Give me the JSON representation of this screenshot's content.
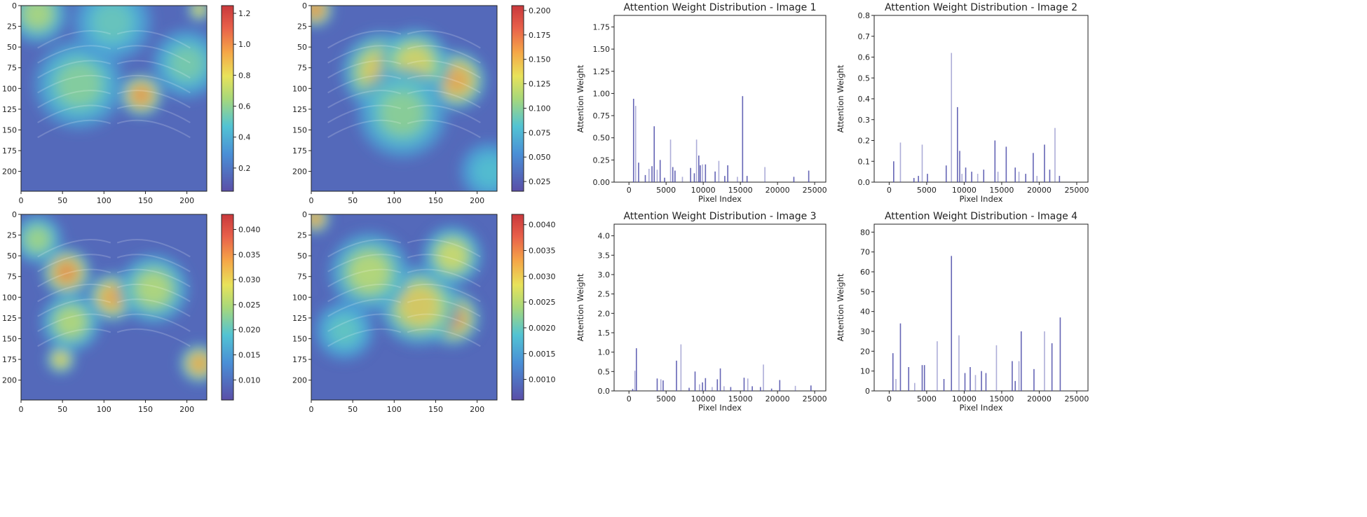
{
  "chart_data": [
    {
      "type": "heatmap",
      "panel": "heatmap-1",
      "x_ticks": [
        "0",
        "50",
        "100",
        "150",
        "200"
      ],
      "y_ticks": [
        "0",
        "25",
        "50",
        "75",
        "100",
        "125",
        "150",
        "175",
        "200"
      ],
      "xlim": [
        0,
        224
      ],
      "ylim": [
        224,
        0
      ],
      "colorbar": {
        "min": 0.05,
        "max": 1.25,
        "ticks": [
          "0.2",
          "0.4",
          "0.6",
          "0.8",
          "1.0",
          "1.2"
        ]
      },
      "blobs": [
        {
          "x": 145,
          "y": 108,
          "value": 1.2,
          "spread": 22
        },
        {
          "x": 70,
          "y": 95,
          "value": 0.7,
          "spread": 45
        },
        {
          "x": 200,
          "y": 70,
          "value": 0.65,
          "spread": 35
        },
        {
          "x": 215,
          "y": 5,
          "value": 1.0,
          "spread": 12
        },
        {
          "x": 20,
          "y": 10,
          "value": 0.8,
          "spread": 30
        },
        {
          "x": 110,
          "y": 20,
          "value": 0.6,
          "spread": 40
        }
      ]
    },
    {
      "type": "heatmap",
      "panel": "heatmap-2",
      "x_ticks": [
        "0",
        "50",
        "100",
        "150",
        "200"
      ],
      "y_ticks": [
        "0",
        "25",
        "50",
        "75",
        "100",
        "125",
        "150",
        "175",
        "200"
      ],
      "xlim": [
        0,
        224
      ],
      "ylim": [
        224,
        0
      ],
      "colorbar": {
        "min": 0.015,
        "max": 0.205,
        "ticks": [
          "0.025",
          "0.050",
          "0.075",
          "0.100",
          "0.125",
          "0.150",
          "0.175",
          "0.200"
        ]
      },
      "blobs": [
        {
          "x": 5,
          "y": 5,
          "value": 0.2,
          "spread": 18
        },
        {
          "x": 85,
          "y": 80,
          "value": 0.17,
          "spread": 40
        },
        {
          "x": 175,
          "y": 90,
          "value": 0.19,
          "spread": 30
        },
        {
          "x": 125,
          "y": 70,
          "value": 0.16,
          "spread": 35
        },
        {
          "x": 110,
          "y": 130,
          "value": 0.12,
          "spread": 45
        },
        {
          "x": 215,
          "y": 200,
          "value": 0.09,
          "spread": 30
        }
      ]
    },
    {
      "type": "heatmap",
      "panel": "heatmap-3",
      "x_ticks": [
        "0",
        "50",
        "100",
        "150",
        "200"
      ],
      "y_ticks": [
        "0",
        "25",
        "50",
        "75",
        "100",
        "125",
        "150",
        "175",
        "200"
      ],
      "xlim": [
        0,
        224
      ],
      "ylim": [
        224,
        0
      ],
      "colorbar": {
        "min": 0.006,
        "max": 0.043,
        "ticks": [
          "0.010",
          "0.015",
          "0.020",
          "0.025",
          "0.030",
          "0.035",
          "0.040"
        ]
      },
      "blobs": [
        {
          "x": 55,
          "y": 70,
          "value": 0.042,
          "spread": 25
        },
        {
          "x": 110,
          "y": 100,
          "value": 0.04,
          "spread": 25
        },
        {
          "x": 48,
          "y": 175,
          "value": 0.035,
          "spread": 15
        },
        {
          "x": 215,
          "y": 180,
          "value": 0.04,
          "spread": 20
        },
        {
          "x": 160,
          "y": 90,
          "value": 0.03,
          "spread": 35
        },
        {
          "x": 60,
          "y": 130,
          "value": 0.03,
          "spread": 30
        },
        {
          "x": 20,
          "y": 30,
          "value": 0.028,
          "spread": 25
        }
      ]
    },
    {
      "type": "heatmap",
      "panel": "heatmap-4",
      "x_ticks": [
        "0",
        "50",
        "100",
        "150",
        "200"
      ],
      "y_ticks": [
        "0",
        "25",
        "50",
        "75",
        "100",
        "125",
        "150",
        "175",
        "200"
      ],
      "xlim": [
        0,
        224
      ],
      "ylim": [
        224,
        0
      ],
      "colorbar": {
        "min": 0.0006,
        "max": 0.0042,
        "ticks": [
          "0.0010",
          "0.0015",
          "0.0020",
          "0.0025",
          "0.0030",
          "0.0035",
          "0.0040"
        ]
      },
      "blobs": [
        {
          "x": 170,
          "y": 125,
          "value": 0.0041,
          "spread": 28
        },
        {
          "x": 5,
          "y": 5,
          "value": 0.004,
          "spread": 15
        },
        {
          "x": 130,
          "y": 110,
          "value": 0.0035,
          "spread": 40
        },
        {
          "x": 70,
          "y": 70,
          "value": 0.003,
          "spread": 40
        },
        {
          "x": 170,
          "y": 50,
          "value": 0.0032,
          "spread": 30
        },
        {
          "x": 40,
          "y": 140,
          "value": 0.0022,
          "spread": 30
        }
      ]
    },
    {
      "type": "bar",
      "panel": "bar-1",
      "title": "Attention Weight Distribution - Image 1",
      "xlabel": "Pixel Index",
      "ylabel": "Attention Weight",
      "xlim": [
        -2000,
        26500
      ],
      "ylim": [
        0,
        1.88
      ],
      "x_ticks": [
        0,
        5000,
        10000,
        15000,
        20000,
        25000
      ],
      "y_ticks": [
        "0.00",
        "0.25",
        "0.50",
        "0.75",
        "1.00",
        "1.25",
        "1.50",
        "1.75"
      ],
      "y_tick_values": [
        0,
        0.25,
        0.5,
        0.75,
        1.0,
        1.25,
        1.5,
        1.75
      ],
      "x": [
        620,
        900,
        1300,
        2200,
        2700,
        3100,
        3400,
        3800,
        4200,
        4800,
        5600,
        5900,
        6200,
        7200,
        8300,
        8800,
        9100,
        9400,
        9600,
        9900,
        10300,
        11600,
        12100,
        12900,
        13300,
        14600,
        15300,
        15900,
        18300,
        22200,
        24200
      ],
      "values": [
        0.94,
        0.86,
        0.22,
        0.08,
        0.15,
        0.18,
        0.63,
        0.14,
        0.25,
        0.05,
        0.48,
        0.17,
        0.13,
        0.06,
        0.16,
        0.1,
        0.48,
        0.3,
        0.19,
        0.2,
        0.2,
        0.12,
        0.24,
        0.07,
        0.19,
        0.06,
        0.97,
        0.07,
        0.17,
        0.06,
        0.13
      ]
    },
    {
      "type": "bar",
      "panel": "bar-2",
      "title": "Attention Weight Distribution - Image 2",
      "xlabel": "Pixel Index",
      "ylabel": "Attention Weight",
      "xlim": [
        -2000,
        26500
      ],
      "ylim": [
        0,
        0.8
      ],
      "x_ticks": [
        0,
        5000,
        10000,
        15000,
        20000,
        25000
      ],
      "y_ticks": [
        "0.0",
        "0.1",
        "0.2",
        "0.3",
        "0.4",
        "0.5",
        "0.6",
        "0.7",
        "0.8"
      ],
      "y_tick_values": [
        0,
        0.1,
        0.2,
        0.3,
        0.4,
        0.5,
        0.6,
        0.7,
        0.8
      ],
      "x": [
        600,
        1500,
        3300,
        3900,
        4400,
        5100,
        7600,
        8300,
        9100,
        9400,
        9700,
        10200,
        11000,
        11800,
        12600,
        14100,
        14500,
        15600,
        16800,
        17300,
        18200,
        19200,
        19700,
        20700,
        21400,
        22100,
        22700
      ],
      "values": [
        0.1,
        0.19,
        0.02,
        0.03,
        0.18,
        0.04,
        0.08,
        0.62,
        0.36,
        0.15,
        0.04,
        0.07,
        0.05,
        0.04,
        0.06,
        0.2,
        0.05,
        0.17,
        0.07,
        0.05,
        0.04,
        0.14,
        0.03,
        0.18,
        0.06,
        0.26,
        0.03
      ]
    },
    {
      "type": "bar",
      "panel": "bar-3",
      "title": "Attention Weight Distribution - Image 3",
      "xlabel": "Pixel Index",
      "ylabel": "Attention Weight",
      "xlim": [
        -2000,
        26500
      ],
      "ylim": [
        0,
        4.3
      ],
      "x_ticks": [
        0,
        5000,
        10000,
        15000,
        20000,
        25000
      ],
      "y_ticks": [
        "0.0",
        "0.5",
        "1.0",
        "1.5",
        "2.0",
        "2.5",
        "3.0",
        "3.5",
        "4.0"
      ],
      "y_tick_values": [
        0,
        0.5,
        1.0,
        1.5,
        2.0,
        2.5,
        3.0,
        3.5,
        4.0
      ],
      "x": [
        500,
        800,
        1000,
        3800,
        4300,
        4600,
        6400,
        7000,
        8100,
        8900,
        9500,
        9900,
        10300,
        11200,
        11900,
        12300,
        12800,
        13700,
        15500,
        16000,
        16600,
        17700,
        18100,
        19200,
        20300,
        22400,
        24500
      ],
      "values": [
        0.05,
        0.52,
        1.1,
        0.32,
        0.3,
        0.27,
        0.78,
        1.2,
        0.08,
        0.5,
        0.17,
        0.22,
        0.33,
        0.1,
        0.3,
        0.58,
        0.12,
        0.1,
        0.34,
        0.32,
        0.12,
        0.1,
        0.68,
        0.06,
        0.28,
        0.13,
        0.14
      ]
    },
    {
      "type": "bar",
      "panel": "bar-4",
      "title": "Attention Weight Distribution - Image 4",
      "xlabel": "Pixel Index",
      "ylabel": "Attention Weight",
      "xlim": [
        -2000,
        26500
      ],
      "ylim": [
        0,
        84
      ],
      "x_ticks": [
        0,
        5000,
        10000,
        15000,
        20000,
        25000
      ],
      "y_ticks": [
        "0",
        "10",
        "20",
        "30",
        "40",
        "50",
        "60",
        "70",
        "80"
      ],
      "y_tick_values": [
        0,
        10,
        20,
        30,
        40,
        50,
        60,
        70,
        80
      ],
      "x": [
        500,
        900,
        1500,
        2600,
        3400,
        4400,
        4700,
        6400,
        7300,
        8300,
        9300,
        10100,
        10800,
        11500,
        12300,
        12900,
        14300,
        16400,
        16800,
        17300,
        17600,
        19300,
        20700,
        21700,
        22800
      ],
      "values": [
        19,
        6,
        34,
        12,
        4,
        13,
        13,
        25,
        6,
        68,
        28,
        9,
        12,
        8,
        10,
        9,
        23,
        15,
        5,
        15,
        30,
        11,
        30,
        24,
        37
      ]
    }
  ]
}
